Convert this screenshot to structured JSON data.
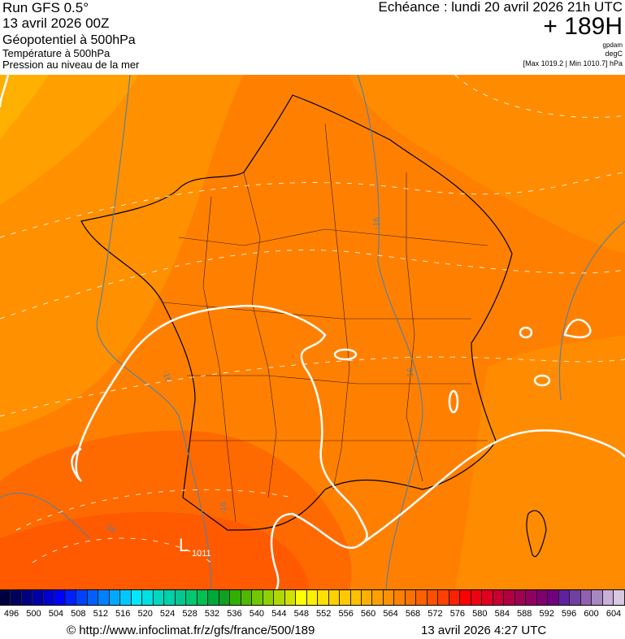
{
  "header": {
    "run": "Run GFS 0.5°",
    "run_date": "13 avril 2026 00Z",
    "field1": "Géopotentiel à 500hPa",
    "field2": "Température à 500hPa",
    "field3": "Pression au niveau de la mer",
    "echeance": "Echéance : lundi 20 avril 2026 21h UTC",
    "lead": "+ 189H",
    "unit1": "gpdam",
    "unit2": "degC",
    "pressure_range": "[Max 1019.2 | Min 1010.7] hPa"
  },
  "map": {
    "low_label": "L",
    "low_value": "1011",
    "temp_labels": [
      "-16",
      "-16",
      "-16",
      "-16",
      "-16"
    ],
    "colors": {
      "land_border": "#000000",
      "isobar": "#ffffff",
      "isotherm": "#5a7fa0",
      "geo_low": "#ff5a00",
      "geo_mid": "#ff8000",
      "geo_high": "#ff9c00",
      "geo_higher": "#ffb000"
    }
  },
  "legend": {
    "ticks": [
      "496",
      "500",
      "504",
      "508",
      "512",
      "516",
      "520",
      "524",
      "528",
      "532",
      "536",
      "540",
      "544",
      "548",
      "552",
      "556",
      "560",
      "564",
      "568",
      "572",
      "576",
      "580",
      "584",
      "588",
      "592",
      "596",
      "600",
      "604"
    ],
    "colors": [
      "#000040",
      "#000060",
      "#000080",
      "#0000a8",
      "#0000d0",
      "#0000ff",
      "#0020ff",
      "#0040ff",
      "#0060ff",
      "#0080ff",
      "#00a8ff",
      "#00c8ff",
      "#00e8ff",
      "#00e0e0",
      "#00d8c0",
      "#00d0a8",
      "#00c890",
      "#00c870",
      "#00c050",
      "#00a838",
      "#10a020",
      "#30b000",
      "#50b800",
      "#70c800",
      "#90d000",
      "#b0d800",
      "#d0e000",
      "#ffff00",
      "#fff000",
      "#ffe000",
      "#ffd000",
      "#ffc800",
      "#ffc000",
      "#ffb000",
      "#ffa000",
      "#ff9000",
      "#ff8000",
      "#ff7000",
      "#ff6000",
      "#ff5000",
      "#ff4000",
      "#ff2000",
      "#ff0000",
      "#f00010",
      "#e00020",
      "#c80030",
      "#b00040",
      "#a00050",
      "#900060",
      "#800070",
      "#700080",
      "#6020a0",
      "#7040a0",
      "#9060b0",
      "#a888c0",
      "#c8b0d8",
      "#d8c8e0"
    ]
  },
  "footer": {
    "url": "© http://www.infoclimat.fr/z/gfs/france/500/189",
    "timestamp": "13 avril 2026  4:27 UTC"
  }
}
